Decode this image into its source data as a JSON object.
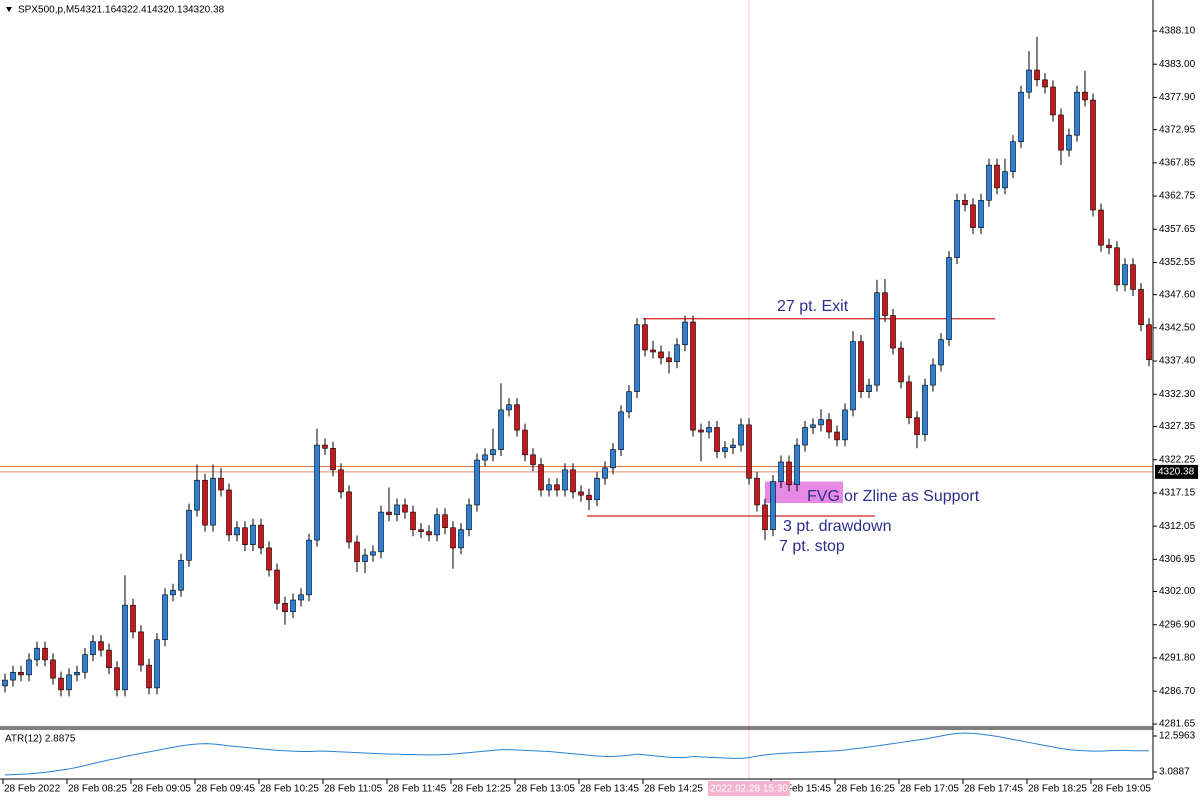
{
  "chart_data": {
    "type": "candlestick",
    "symbol": "SPX500,p,M5",
    "header_values": [
      4321.16,
      4322.41,
      4320.13,
      4320.38
    ],
    "up_color": "#2b7fd4",
    "down_color": "#c8161d",
    "ylim": [
      4281.04,
      4392.86
    ],
    "yticks": [
      {
        "value": 4388.1,
        "label": "4388.10"
      },
      {
        "value": 4383,
        "label": "4383.00"
      },
      {
        "value": 4377.9,
        "label": "4377.90"
      },
      4372.95,
      4367.85,
      4362.75,
      4357.65,
      4352.55,
      {
        "value": 4347.6,
        "label": "4347.60"
      },
      {
        "value": 4342.5,
        "label": "4342.50"
      },
      {
        "value": 4337.4,
        "label": "4337.40"
      },
      {
        "value": 4332.3,
        "label": "4332.30"
      },
      4327.35,
      4322.25,
      4317.15,
      4312.05,
      4306.95,
      {
        "value": 4302,
        "label": "4302.00"
      },
      {
        "value": 4296.9,
        "label": "4296.90"
      },
      {
        "value": 4291.8,
        "label": "4291.80"
      },
      {
        "value": 4286.7,
        "label": "4286.70"
      },
      4281.65
    ],
    "xticks": [
      {
        "value": 0,
        "label": "28 Feb 2022"
      },
      {
        "value": 8,
        "label": "28 Feb 08:25"
      },
      {
        "value": 16,
        "label": "28 Feb 09:05"
      },
      {
        "value": 24,
        "label": "28 Feb 09:45"
      },
      {
        "value": 32,
        "label": "28 Feb 10:25"
      },
      {
        "value": 40,
        "label": "28 Feb 11:05"
      },
      {
        "value": 48,
        "label": "28 Feb 11:45"
      },
      {
        "value": 56,
        "label": "28 Feb 12:25"
      },
      {
        "value": 64,
        "label": "28 Feb 13:05"
      },
      {
        "value": 72,
        "label": "28 Feb 13:45"
      },
      {
        "value": 80,
        "label": "28 Feb 14:25"
      },
      {
        "value": 96,
        "label": "28 Feb 15:45"
      },
      {
        "value": 104,
        "label": "28 Feb 16:25"
      },
      {
        "value": 112,
        "label": "28 Feb 17:05"
      },
      {
        "value": 120,
        "label": "28 Feb 17:45"
      },
      {
        "value": 128,
        "label": "28 Feb 18:25"
      },
      {
        "value": 136,
        "label": "28 Feb 19:05"
      }
    ],
    "cursor": {
      "index": 93,
      "label": "2022.02.28 15:30"
    },
    "last_price": 4320.38,
    "levels": [
      4321.2
    ],
    "ohlc": [
      [
        4287.5,
        4289.4,
        4286.5,
        4288.4
      ],
      [
        4288.4,
        4290.6,
        4287.4,
        4289.6
      ],
      [
        4289.6,
        4290.6,
        4288.2,
        4289.2
      ],
      [
        4289.2,
        4292.5,
        4288.2,
        4291.5
      ],
      [
        4291.5,
        4294.3,
        4290.5,
        4293.3
      ],
      [
        4293.3,
        4294.3,
        4290.5,
        4291.5
      ],
      [
        4291.5,
        4292.5,
        4287.7,
        4288.7
      ],
      [
        4288.7,
        4289.7,
        4285.9,
        4286.9
      ],
      [
        4286.9,
        4290.2,
        4285.9,
        4289.2
      ],
      [
        4289.2,
        4290.6,
        4288.2,
        4289.6
      ],
      [
        4289.6,
        4293.3,
        4288.6,
        4292.3
      ],
      [
        4292.3,
        4295.3,
        4291.3,
        4294.3
      ],
      [
        4294.3,
        4295.3,
        4292.0,
        4293.0
      ],
      [
        4293.0,
        4294.0,
        4289.3,
        4290.3
      ],
      [
        4290.3,
        4291.3,
        4285.9,
        4286.9
      ],
      [
        4286.9,
        4304.5,
        4285.9,
        4299.9
      ],
      [
        4299.9,
        4300.9,
        4294.8,
        4295.8
      ],
      [
        4295.8,
        4296.8,
        4289.7,
        4290.7
      ],
      [
        4290.7,
        4291.7,
        4286.2,
        4287.2
      ],
      [
        4287.2,
        4295.6,
        4286.2,
        4294.6
      ],
      [
        4294.6,
        4302.5,
        4293.6,
        4301.5
      ],
      [
        4301.5,
        4303.2,
        4300.5,
        4302.2
      ],
      [
        4302.2,
        4307.8,
        4301.2,
        4306.8
      ],
      [
        4306.8,
        4315.5,
        4305.8,
        4314.5
      ],
      [
        4314.5,
        4321.5,
        4313.5,
        4319.1
      ],
      [
        4319.1,
        4320.1,
        4311.2,
        4312.2
      ],
      [
        4312.2,
        4321.5,
        4311.2,
        4319.4
      ],
      [
        4319.4,
        4321.0,
        4316.6,
        4317.6
      ],
      [
        4317.6,
        4318.6,
        4309.7,
        4310.7
      ],
      [
        4310.7,
        4312.8,
        4309.7,
        4311.8
      ],
      [
        4311.8,
        4312.8,
        4308.2,
        4309.2
      ],
      [
        4309.2,
        4313.2,
        4308.2,
        4312.2
      ],
      [
        4312.2,
        4313.2,
        4307.7,
        4308.7
      ],
      [
        4308.7,
        4309.7,
        4304.3,
        4305.3
      ],
      [
        4305.3,
        4306.3,
        4299.2,
        4300.2
      ],
      [
        4300.2,
        4301.2,
        4296.9,
        4298.9
      ],
      [
        4298.9,
        4301.7,
        4297.9,
        4300.7
      ],
      [
        4300.7,
        4302.5,
        4299.7,
        4301.5
      ],
      [
        4301.5,
        4310.9,
        4300.5,
        4309.9
      ],
      [
        4309.9,
        4327.0,
        4308.9,
        4324.5
      ],
      [
        4324.5,
        4325.5,
        4323.0,
        4324.0
      ],
      [
        4324.0,
        4325.0,
        4319.7,
        4320.7
      ],
      [
        4320.7,
        4321.7,
        4316.3,
        4317.3
      ],
      [
        4317.3,
        4318.3,
        4308.6,
        4309.6
      ],
      [
        4309.6,
        4310.6,
        4305.0,
        4306.6
      ],
      [
        4306.6,
        4308.6,
        4304.8,
        4307.6
      ],
      [
        4307.6,
        4309.1,
        4306.6,
        4308.1
      ],
      [
        4308.1,
        4315.2,
        4307.1,
        4314.2
      ],
      [
        4314.2,
        4318.0,
        4312.8,
        4313.8
      ],
      [
        4313.8,
        4316.3,
        4312.8,
        4315.3
      ],
      [
        4315.3,
        4316.3,
        4313.2,
        4314.2
      ],
      [
        4314.2,
        4315.2,
        4310.5,
        4311.5
      ],
      [
        4311.5,
        4312.5,
        4310.2,
        4311.2
      ],
      [
        4311.2,
        4312.2,
        4309.7,
        4310.7
      ],
      [
        4310.7,
        4314.8,
        4309.7,
        4313.8
      ],
      [
        4313.8,
        4314.8,
        4310.8,
        4311.8
      ],
      [
        4311.8,
        4312.8,
        4305.5,
        4308.7
      ],
      [
        4308.7,
        4312.5,
        4307.7,
        4311.5
      ],
      [
        4311.5,
        4316.3,
        4310.5,
        4315.3
      ],
      [
        4315.3,
        4323.2,
        4314.3,
        4322.2
      ],
      [
        4322.2,
        4324.0,
        4321.2,
        4323.0
      ],
      [
        4323.0,
        4327.0,
        4322.0,
        4323.8
      ],
      [
        4323.8,
        4334.0,
        4322.8,
        4329.9
      ],
      [
        4329.9,
        4331.7,
        4328.9,
        4330.7
      ],
      [
        4330.7,
        4331.7,
        4325.8,
        4326.8
      ],
      [
        4326.8,
        4327.8,
        4322.0,
        4323.0
      ],
      [
        4323.0,
        4324.0,
        4320.5,
        4321.5
      ],
      [
        4321.5,
        4322.5,
        4316.6,
        4317.6
      ],
      [
        4317.6,
        4319.4,
        4316.6,
        4318.4
      ],
      [
        4318.4,
        4319.4,
        4316.6,
        4317.6
      ],
      [
        4317.6,
        4321.7,
        4316.6,
        4320.7
      ],
      [
        4320.7,
        4321.7,
        4316.3,
        4317.3
      ],
      [
        4317.3,
        4318.3,
        4315.8,
        4316.8
      ],
      [
        4316.8,
        4317.8,
        4314.5,
        4316.1
      ],
      [
        4316.1,
        4320.4,
        4315.1,
        4319.4
      ],
      [
        4319.4,
        4322.0,
        4318.4,
        4321.0
      ],
      [
        4321.0,
        4324.8,
        4320.0,
        4323.8
      ],
      [
        4323.8,
        4330.6,
        4322.8,
        4329.6
      ],
      [
        4329.6,
        4333.7,
        4328.6,
        4332.7
      ],
      [
        4332.7,
        4344.0,
        4331.7,
        4343.0
      ],
      [
        4343.0,
        4344.0,
        4338.1,
        4339.1
      ],
      [
        4339.1,
        4340.5,
        4337.8,
        4338.8
      ],
      [
        4338.8,
        4339.8,
        4336.9,
        4337.9
      ],
      [
        4337.9,
        4338.9,
        4335.5,
        4337.3
      ],
      [
        4337.3,
        4340.9,
        4336.3,
        4339.9
      ],
      [
        4339.9,
        4344.4,
        4338.9,
        4343.4
      ],
      [
        4343.4,
        4344.4,
        4325.8,
        4326.8
      ],
      [
        4326.8,
        4327.8,
        4322.0,
        4326.5
      ],
      [
        4326.5,
        4328.2,
        4325.5,
        4327.2
      ],
      [
        4327.2,
        4328.2,
        4322.5,
        4323.5
      ],
      [
        4323.5,
        4325.1,
        4322.5,
        4324.1
      ],
      [
        4324.1,
        4325.5,
        4323.1,
        4324.5
      ],
      [
        4324.5,
        4328.6,
        4323.5,
        4327.6
      ],
      [
        4327.6,
        4328.6,
        4318.4,
        4319.4
      ],
      [
        4319.4,
        4320.4,
        4314.3,
        4315.3
      ],
      [
        4315.3,
        4316.3,
        4309.9,
        4311.5
      ],
      [
        4311.5,
        4319.9,
        4310.5,
        4318.9
      ],
      [
        4318.9,
        4322.9,
        4317.9,
        4321.9
      ],
      [
        4321.9,
        4322.9,
        4317.4,
        4318.4
      ],
      [
        4318.4,
        4325.5,
        4317.4,
        4324.5
      ],
      [
        4324.5,
        4328.2,
        4323.5,
        4327.2
      ],
      [
        4327.2,
        4328.6,
        4326.2,
        4327.6
      ],
      [
        4327.6,
        4330.0,
        4326.6,
        4328.4
      ],
      [
        4328.4,
        4329.4,
        4325.5,
        4326.5
      ],
      [
        4326.5,
        4327.5,
        4324.3,
        4325.3
      ],
      [
        4325.3,
        4330.9,
        4324.3,
        4329.9
      ],
      [
        4329.9,
        4342.0,
        4328.9,
        4340.4
      ],
      [
        4340.4,
        4341.4,
        4331.7,
        4332.7
      ],
      [
        4332.7,
        4334.7,
        4331.7,
        4333.7
      ],
      [
        4333.7,
        4349.9,
        4332.7,
        4347.9
      ],
      [
        4347.9,
        4350.0,
        4343.4,
        4344.4
      ],
      [
        4344.4,
        4345.4,
        4338.4,
        4339.4
      ],
      [
        4339.4,
        4340.4,
        4333.2,
        4334.2
      ],
      [
        4334.2,
        4335.2,
        4327.7,
        4328.7
      ],
      [
        4328.7,
        4329.7,
        4324.0,
        4326.1
      ],
      [
        4326.1,
        4334.7,
        4325.1,
        4333.7
      ],
      [
        4333.7,
        4337.8,
        4332.7,
        4336.8
      ],
      [
        4336.8,
        4341.7,
        4335.8,
        4340.7
      ],
      [
        4340.7,
        4354.3,
        4339.7,
        4353.3
      ],
      [
        4353.3,
        4363.1,
        4352.3,
        4362.1
      ],
      [
        4362.1,
        4363.1,
        4360.4,
        4361.4
      ],
      [
        4361.4,
        4362.4,
        4356.9,
        4357.9
      ],
      [
        4357.9,
        4363.1,
        4356.9,
        4362.1
      ],
      [
        4362.1,
        4368.5,
        4361.1,
        4367.5
      ],
      [
        4367.5,
        4368.5,
        4363.0,
        4364.0
      ],
      [
        4364.0,
        4368.5,
        4363.0,
        4366.5
      ],
      [
        4366.5,
        4372.1,
        4365.5,
        4371.1
      ],
      [
        4371.1,
        4379.7,
        4370.1,
        4378.7
      ],
      [
        4378.7,
        4385.0,
        4377.7,
        4382.1
      ],
      [
        4382.1,
        4387.2,
        4379.6,
        4380.6
      ],
      [
        4380.6,
        4381.6,
        4378.5,
        4379.5
      ],
      [
        4379.5,
        4380.5,
        4374.2,
        4375.2
      ],
      [
        4375.2,
        4376.2,
        4367.5,
        4369.8
      ],
      [
        4369.8,
        4373.1,
        4368.8,
        4372.1
      ],
      [
        4372.1,
        4379.7,
        4371.1,
        4378.7
      ],
      [
        4378.7,
        4382.0,
        4376.5,
        4377.5
      ],
      [
        4377.5,
        4378.5,
        4359.6,
        4360.6
      ],
      [
        4360.6,
        4361.6,
        4354.2,
        4355.2
      ],
      [
        4355.2,
        4356.2,
        4353.8,
        4354.8
      ],
      [
        4354.8,
        4355.8,
        4348.1,
        4349.1
      ],
      [
        4349.1,
        4353.2,
        4348.1,
        4352.2
      ],
      [
        4352.2,
        4353.2,
        4347.4,
        4348.4
      ],
      [
        4348.4,
        4349.4,
        4342.0,
        4343.0
      ],
      [
        4343.0,
        4344.0,
        4336.6,
        4337.6
      ]
    ],
    "annotations": {
      "lines": [
        {
          "start": 79.75,
          "end": 123.75,
          "price": 4343.9,
          "color": "#d02020"
        },
        {
          "start": 72.75,
          "end": 108.75,
          "price": 4313.6,
          "color": "#d02020"
        }
      ],
      "zone": {
        "start": 95,
        "end": 104.75,
        "top": 4318.9,
        "bottom": 4315.6,
        "color": "#e68ae6"
      },
      "texts": [
        "27 pt. Exit",
        "FVG",
        "or Zline as Support",
        "3 pt. drawdown",
        "7 pt. stop"
      ]
    },
    "indicator": {
      "label": "ATR(12) 2.8875",
      "color": "#2b7fd4",
      "ylim": [
        1.24,
        14.45
      ],
      "yticks": [
        12.5963,
        3.0887
      ],
      "values": [
        2.3,
        2.4,
        2.5,
        2.6,
        2.8,
        3.0,
        3.3,
        3.6,
        3.9,
        4.3,
        4.8,
        5.3,
        5.8,
        6.3,
        6.7,
        7.2,
        7.6,
        8.0,
        8.4,
        8.8,
        9.2,
        9.6,
        10.0,
        10.3,
        10.5,
        10.6,
        10.5,
        10.3,
        10.0,
        9.8,
        9.6,
        9.4,
        9.2,
        9.0,
        8.8,
        8.7,
        8.6,
        8.5,
        8.5,
        8.6,
        8.6,
        8.5,
        8.4,
        8.3,
        8.2,
        8.1,
        8.0,
        7.9,
        7.8,
        7.8,
        7.7,
        7.7,
        7.6,
        7.6,
        7.6,
        7.7,
        7.8,
        8.0,
        8.2,
        8.4,
        8.6,
        8.8,
        9.0,
        9.0,
        8.9,
        8.8,
        8.7,
        8.6,
        8.5,
        8.3,
        8.1,
        7.9,
        7.7,
        7.5,
        7.3,
        7.2,
        7.2,
        7.3,
        7.5,
        7.8,
        7.6,
        7.4,
        7.2,
        7.0,
        6.9,
        6.9,
        7.2,
        7.1,
        7.0,
        6.9,
        6.8,
        6.7,
        6.7,
        6.9,
        7.3,
        7.6,
        7.8,
        8.0,
        8.1,
        8.2,
        8.3,
        8.4,
        8.5,
        8.6,
        8.7,
        8.9,
        9.2,
        9.4,
        9.7,
        10.0,
        10.3,
        10.6,
        10.9,
        11.2,
        11.5,
        11.8,
        12.2,
        12.6,
        13.0,
        13.3,
        13.4,
        13.3,
        13.1,
        12.8,
        12.5,
        12.1,
        11.7,
        11.3,
        10.9,
        10.5,
        10.1,
        9.7,
        9.3,
        9.0,
        8.8,
        8.7,
        8.6,
        8.6,
        8.7,
        8.8,
        8.8,
        8.7,
        8.7,
        8.7
      ]
    }
  }
}
